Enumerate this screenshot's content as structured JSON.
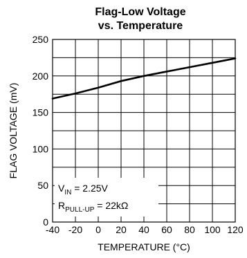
{
  "chart_data": {
    "type": "line",
    "title_lines": [
      "Flag-Low Voltage",
      "vs. Temperature"
    ],
    "xlabel": "TEMPERATURE (°C)",
    "ylabel": "FLAG VOLTAGE (mV)",
    "xlim": [
      -40,
      120
    ],
    "ylim": [
      0,
      250
    ],
    "x_ticks": [
      -40,
      -20,
      0,
      20,
      40,
      60,
      80,
      100,
      120
    ],
    "y_ticks": [
      0,
      50,
      100,
      150,
      200,
      250
    ],
    "grid": true,
    "series": [
      {
        "x": [
          -40,
          -20,
          0,
          20,
          40,
          60,
          80,
          100,
          120
        ],
        "values": [
          169,
          176,
          184,
          193,
          200,
          206,
          212,
          218,
          224
        ]
      }
    ],
    "annotation": {
      "line1": {
        "main": "V",
        "sub": "IN",
        "rest": " = 2.25V"
      },
      "line2": {
        "main": "R",
        "sub": "PULL-UP",
        "rest": " = 22kΩ"
      }
    }
  }
}
